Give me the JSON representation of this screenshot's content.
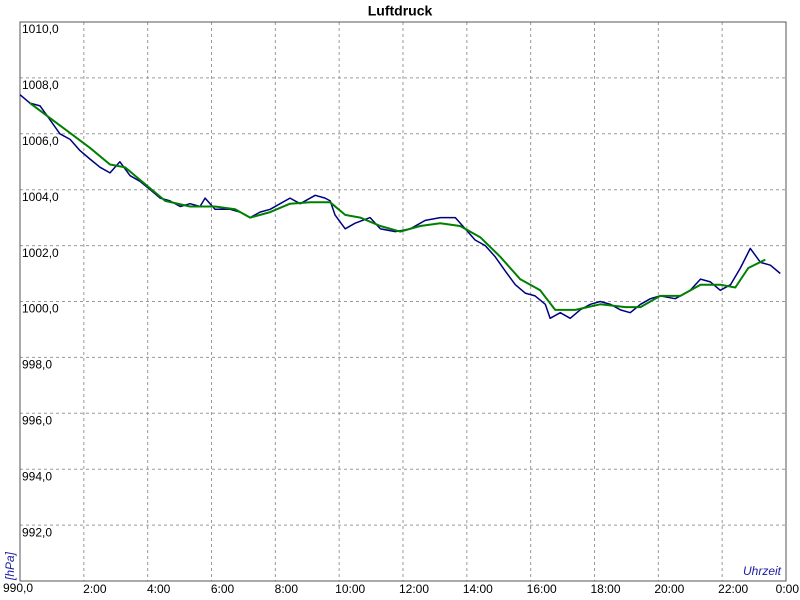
{
  "chart_data": {
    "type": "line",
    "title": "Luftdruck",
    "y_label": "[hPa]",
    "x_label": "Uhrzeit",
    "xlim": [
      0,
      24
    ],
    "ylim": [
      990,
      1010
    ],
    "grid": true,
    "xticks": [
      {
        "value": 2,
        "label": "2:00"
      },
      {
        "value": 4,
        "label": "4:00"
      },
      {
        "value": 6,
        "label": "6:00"
      },
      {
        "value": 8,
        "label": "8:00"
      },
      {
        "value": 10,
        "label": "10:00"
      },
      {
        "value": 12,
        "label": "12:00"
      },
      {
        "value": 14,
        "label": "14:00"
      },
      {
        "value": 16,
        "label": "16:00"
      },
      {
        "value": 18,
        "label": "18:00"
      },
      {
        "value": 20,
        "label": "20:00"
      },
      {
        "value": 22,
        "label": "22:00"
      },
      {
        "value": 24,
        "label": "0:00"
      }
    ],
    "yticks": [
      {
        "value": 990,
        "label": "990,0"
      },
      {
        "value": 992,
        "label": "992,0"
      },
      {
        "value": 994,
        "label": "994,0"
      },
      {
        "value": 996,
        "label": "996,0"
      },
      {
        "value": 998,
        "label": "998,0"
      },
      {
        "value": 1000,
        "label": "1000,0"
      },
      {
        "value": 1002,
        "label": "1002,0"
      },
      {
        "value": 1004,
        "label": "1004,0"
      },
      {
        "value": 1006,
        "label": "1006,0"
      },
      {
        "value": 1008,
        "label": "1008,0"
      },
      {
        "value": 1010,
        "label": "1010,0"
      }
    ],
    "series": [
      {
        "color": "#000080",
        "x": [
          0,
          0.31,
          0.63,
          0.94,
          1.25,
          1.57,
          1.88,
          2.19,
          2.51,
          2.82,
          3.13,
          3.45,
          3.76,
          4.08,
          4.39,
          4.7,
          5.02,
          5.33,
          5.64,
          5.8,
          6.11,
          6.58,
          6.9,
          7.21,
          7.52,
          7.84,
          8.15,
          8.46,
          8.78,
          9.25,
          9.56,
          9.72,
          9.87,
          10.19,
          10.5,
          10.97,
          11.29,
          11.76,
          12.23,
          12.7,
          13.17,
          13.64,
          13.95,
          14.26,
          14.58,
          14.89,
          15.2,
          15.52,
          15.83,
          16.14,
          16.46,
          16.61,
          16.93,
          17.24,
          17.55,
          17.87,
          18.18,
          18.5,
          18.81,
          19.12,
          19.44,
          19.75,
          20.06,
          20.53,
          21.0,
          21.32,
          21.63,
          21.94,
          22.26,
          22.57,
          22.88,
          23.2,
          23.51,
          23.82
        ],
        "values": [
          1007.4,
          1007.1,
          1007.0,
          1006.5,
          1006.0,
          1005.8,
          1005.4,
          1005.1,
          1004.8,
          1004.6,
          1005.0,
          1004.5,
          1004.3,
          1004.0,
          1003.7,
          1003.6,
          1003.4,
          1003.5,
          1003.4,
          1003.7,
          1003.3,
          1003.3,
          1003.2,
          1003.0,
          1003.2,
          1003.3,
          1003.5,
          1003.7,
          1003.5,
          1003.8,
          1003.7,
          1003.6,
          1003.1,
          1002.6,
          1002.8,
          1003.0,
          1002.6,
          1002.5,
          1002.6,
          1002.9,
          1003.0,
          1003.0,
          1002.6,
          1002.2,
          1002.0,
          1001.6,
          1001.1,
          1000.6,
          1000.3,
          1000.2,
          999.9,
          999.4,
          999.6,
          999.4,
          999.7,
          999.9,
          1000.0,
          999.9,
          999.7,
          999.6,
          999.9,
          1000.1,
          1000.2,
          1000.1,
          1000.4,
          1000.8,
          1000.7,
          1000.4,
          1000.6,
          1001.2,
          1001.9,
          1001.4,
          1001.3,
          1001.0
        ]
      },
      {
        "color": "#008000",
        "x": [
          0.31,
          1.25,
          2.19,
          2.82,
          3.29,
          3.92,
          4.55,
          5.33,
          6.11,
          6.74,
          7.21,
          7.84,
          8.46,
          9.09,
          9.72,
          10.19,
          10.66,
          11.29,
          11.91,
          12.54,
          13.17,
          13.79,
          14.42,
          15.05,
          15.67,
          16.3,
          16.77,
          17.4,
          18.18,
          18.97,
          19.44,
          20.06,
          20.69,
          21.32,
          21.94,
          22.41,
          22.82,
          23.35
        ],
        "values": [
          1007.1,
          1006.3,
          1005.5,
          1004.9,
          1004.8,
          1004.2,
          1003.6,
          1003.4,
          1003.4,
          1003.3,
          1003.0,
          1003.2,
          1003.5,
          1003.55,
          1003.55,
          1003.1,
          1003.0,
          1002.7,
          1002.5,
          1002.7,
          1002.8,
          1002.7,
          1002.3,
          1001.6,
          1000.8,
          1000.4,
          999.7,
          999.7,
          999.9,
          999.8,
          999.8,
          1000.2,
          1000.2,
          1000.6,
          1000.6,
          1000.5,
          1001.2,
          1001.5
        ]
      }
    ]
  }
}
